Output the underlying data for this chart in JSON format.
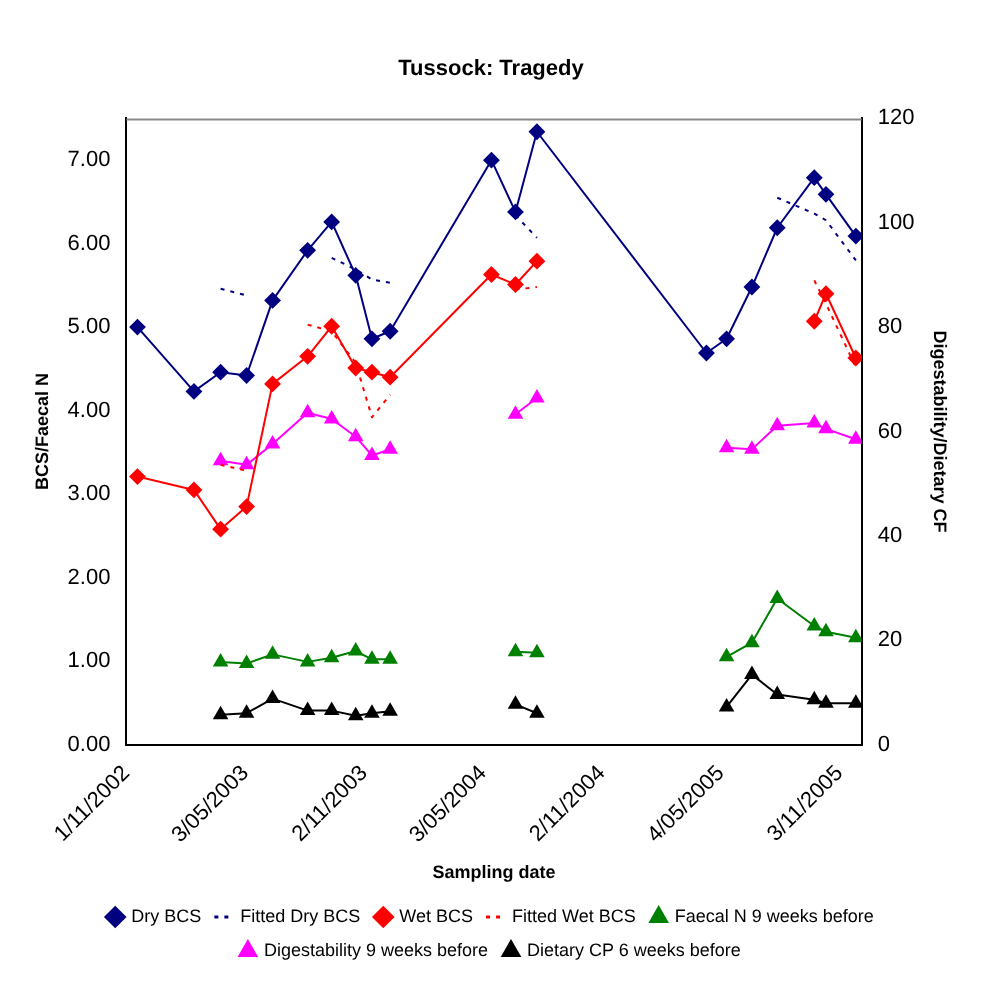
{
  "chart_data": {
    "type": "line",
    "title": "Tussock: Tragedy",
    "xlabel": "Sampling date",
    "ylabel": "BCS/Faecal N",
    "y2label": "Digestability/Dietary CF",
    "x": [
      "2002-11-18",
      "2003-02-13",
      "2003-03-26",
      "2003-05-05",
      "2003-06-14",
      "2003-08-07",
      "2003-09-13",
      "2003-10-20",
      "2003-11-14",
      "2003-12-12",
      "2004-05-16",
      "2004-06-22",
      "2004-07-25",
      "2005-04-12",
      "2005-05-13",
      "2005-06-21",
      "2005-07-30",
      "2005-09-25",
      "2005-10-13",
      "2005-11-28"
    ],
    "series": [
      {
        "name": "Dry BCS",
        "color": "#000080",
        "marker": "diamond",
        "line_style": "solid",
        "values": [
          5.0,
          4.23,
          4.46,
          4.42,
          5.32,
          5.92,
          6.26,
          5.62,
          4.86,
          4.95,
          7.0,
          6.38,
          7.34,
          4.69,
          4.86,
          5.48,
          6.19,
          6.79,
          6.59,
          6.09
        ]
      },
      {
        "name": "Fitted Dry BCS",
        "color": "#000080",
        "marker": "none",
        "line_style": "dotted",
        "values": [
          null,
          null,
          5.46,
          5.38,
          null,
          null,
          5.83,
          5.69,
          5.57,
          5.53,
          null,
          6.34,
          6.07,
          null,
          null,
          null,
          6.55,
          6.36,
          6.28,
          5.8
        ]
      },
      {
        "name": "Wet BCS",
        "color": "#ff0000",
        "marker": "diamond",
        "line_style": "solid",
        "values": [
          3.21,
          3.05,
          2.58,
          2.85,
          4.32,
          4.65,
          5.01,
          4.51,
          4.46,
          4.4,
          5.63,
          5.51,
          5.79,
          null,
          null,
          null,
          null,
          5.07,
          5.4,
          4.63
        ]
      },
      {
        "name": "Fitted Wet BCS",
        "color": "#ff0000",
        "marker": "none",
        "line_style": "dotted",
        "values": [
          null,
          null,
          3.35,
          3.28,
          null,
          5.03,
          4.95,
          4.57,
          3.92,
          4.19,
          null,
          5.45,
          5.48,
          null,
          null,
          null,
          null,
          5.56,
          5.28,
          4.52
        ]
      },
      {
        "name": "Faecal N 9 weeks before",
        "color": "#008000",
        "marker": "triangle",
        "line_style": "solid",
        "values": [
          null,
          null,
          0.99,
          0.97,
          1.08,
          0.99,
          1.04,
          1.12,
          1.02,
          1.02,
          null,
          1.11,
          1.1,
          null,
          1.05,
          1.22,
          1.75,
          1.42,
          1.35,
          1.28
        ]
      },
      {
        "name": "Digestability 9 weeks before",
        "color": "#ff00ff",
        "marker": "triangle",
        "line_style": "solid",
        "axis": "y2",
        "values": [
          null,
          null,
          54.4,
          53.6,
          57.6,
          63.6,
          62.4,
          59.0,
          55.4,
          56.6,
          null,
          63.3,
          66.4,
          null,
          56.9,
          56.6,
          61.1,
          61.6,
          60.5,
          58.5
        ]
      },
      {
        "name": "Dietary CP 6 weeks before",
        "color": "#000000",
        "marker": "triangle",
        "line_style": "solid",
        "axis": "y2",
        "values": [
          null,
          null,
          5.7,
          6.0,
          8.8,
          6.5,
          6.5,
          5.5,
          6.0,
          6.4,
          null,
          7.7,
          6.0,
          null,
          7.2,
          13.4,
          9.6,
          8.6,
          7.9,
          7.9
        ]
      }
    ],
    "xlim": [
      "2002-11-01",
      "2005-12-07"
    ],
    "xticks": [
      {
        "value": "2002-11-01",
        "label": "1/11/2002"
      },
      {
        "value": "2003-05-03",
        "label": "3/05/2003"
      },
      {
        "value": "2003-11-02",
        "label": "2/11/2003"
      },
      {
        "value": "2004-05-03",
        "label": "3/05/2004"
      },
      {
        "value": "2004-11-02",
        "label": "2/11/2004"
      },
      {
        "value": "2005-05-04",
        "label": "4/05/2005"
      },
      {
        "value": "2005-11-03",
        "label": "3/11/2005"
      }
    ],
    "ylim": [
      0,
      7.5
    ],
    "yticks": [
      {
        "value": 0,
        "label": "0.00"
      },
      {
        "value": 1,
        "label": "1.00"
      },
      {
        "value": 2,
        "label": "2.00"
      },
      {
        "value": 3,
        "label": "3.00"
      },
      {
        "value": 4,
        "label": "4.00"
      },
      {
        "value": 5,
        "label": "5.00"
      },
      {
        "value": 6,
        "label": "6.00"
      },
      {
        "value": 7,
        "label": "7.00"
      }
    ],
    "y2lim": [
      0,
      120
    ],
    "y2ticks": [
      0,
      20,
      40,
      60,
      80,
      100,
      120
    ],
    "grid": false,
    "legend": "bottom"
  }
}
